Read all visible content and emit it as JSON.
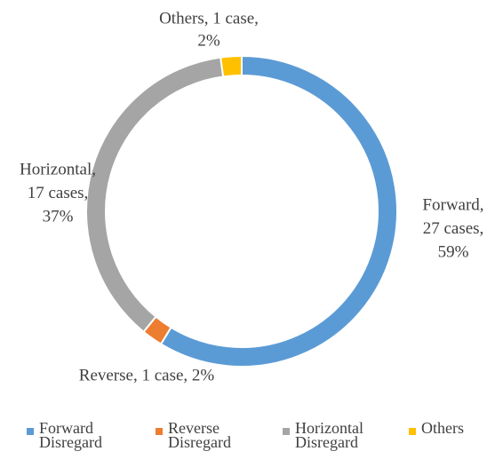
{
  "chart_data": {
    "type": "donut",
    "categories": [
      "Forward Disregard",
      "Reverse Disregard",
      "Horizontal Disregard",
      "Others"
    ],
    "values": [
      27,
      1,
      17,
      1
    ],
    "value_labels": [
      [
        "Forward,",
        "27 cases,",
        "59%"
      ],
      [
        "Reverse, 1 case, 2%"
      ],
      [
        "Horizontal,",
        "17 cases,",
        "37%"
      ],
      [
        "Others, 1 case,",
        "2%"
      ]
    ],
    "colors": [
      "#5b9bd5",
      "#ed7d31",
      "#a5a5a5",
      "#ffc000"
    ],
    "legend": "bottom"
  }
}
